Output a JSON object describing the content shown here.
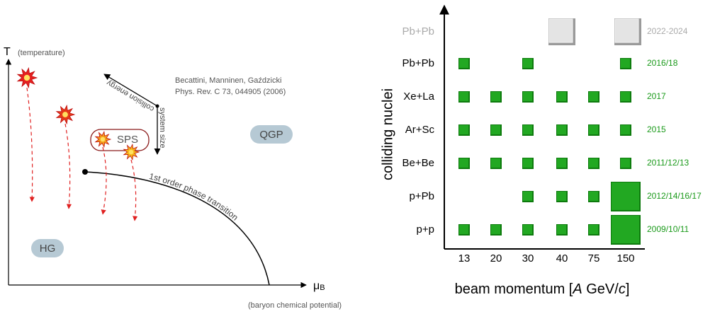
{
  "phase_diagram": {
    "y_axis_label": "T",
    "y_axis_note": "(temperature)",
    "x_axis_label": "μ",
    "x_axis_subscript": "B",
    "x_axis_note": "(baryon chemical potential)",
    "arrow_labels": [
      "collision energy",
      "system size"
    ],
    "reference": [
      "Becattini, Manninen, Gaździcki",
      "Phys. Rev. C 73, 044905 (2006)"
    ],
    "regions": [
      "QGP",
      "HG",
      "SPS"
    ],
    "transition_label": "1st order phase transition"
  },
  "program_grid": {
    "y_axis_label": "colliding nuclei",
    "x_axis_label": [
      "beam momentum [",
      "A",
      " GeV/",
      "c",
      "]"
    ],
    "columns": [
      "13",
      "20",
      "30",
      "40",
      "75",
      "150"
    ],
    "rows": [
      {
        "label": "Pb+Pb",
        "years": "2022-2024",
        "planned": true,
        "cells": [
          3,
          5
        ],
        "large_cells": [
          3,
          5
        ]
      },
      {
        "label": "Pb+Pb",
        "years": "2016/18",
        "cells": [
          0,
          2,
          5
        ]
      },
      {
        "label": "Xe+La",
        "years": "2017",
        "cells": [
          0,
          1,
          2,
          3,
          4,
          5
        ]
      },
      {
        "label": "Ar+Sc",
        "years": "2015",
        "cells": [
          0,
          1,
          2,
          3,
          4,
          5
        ]
      },
      {
        "label": "Be+Be",
        "years": "2011/12/13",
        "cells": [
          0,
          1,
          2,
          3,
          4,
          5
        ]
      },
      {
        "label": "p+Pb",
        "years": "2012/14/16/17",
        "cells": [
          2,
          3,
          4,
          5
        ],
        "large_cells": [
          5
        ]
      },
      {
        "label": "p+p",
        "years": "2009/10/11",
        "cells": [
          0,
          1,
          2,
          3,
          4,
          5
        ],
        "large_cells": [
          5
        ]
      }
    ]
  }
}
